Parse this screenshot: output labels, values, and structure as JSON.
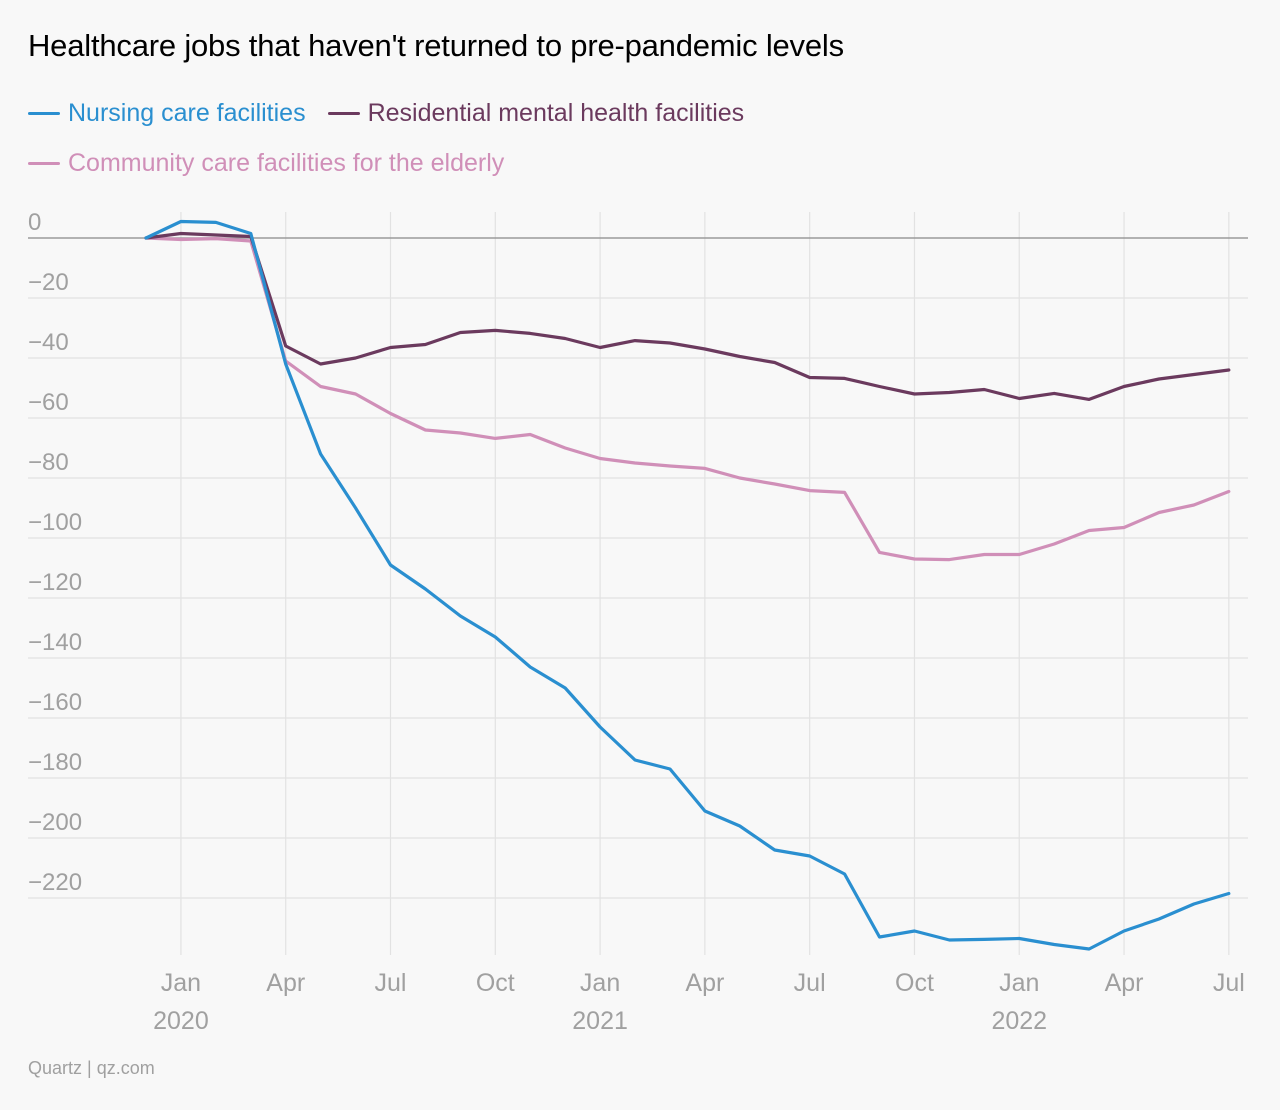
{
  "title": "Healthcare jobs that haven't returned to pre-pandemic levels",
  "footer": "Quartz | qz.com",
  "colors": {
    "nursing": "#2a8fd0",
    "residential": "#6b3a5e",
    "community": "#d08fb8",
    "grid": "#e2e2e2",
    "zero_line": "#9a9a9a",
    "axis_text": "#a0a0a0"
  },
  "chart_data": {
    "type": "line",
    "title": "Healthcare jobs that haven't returned to pre-pandemic levels",
    "xlabel": "",
    "ylabel": "",
    "ylim": [
      -237,
      0
    ],
    "y_ticks": [
      "0",
      "−20",
      "−40",
      "−60",
      "−80",
      "−100",
      "−120",
      "−140",
      "−160",
      "−180",
      "−200",
      "−220"
    ],
    "y_tick_values": [
      0,
      -20,
      -40,
      -60,
      -80,
      -100,
      -120,
      -140,
      -160,
      -180,
      -200,
      -220
    ],
    "x": [
      "2019-12",
      "2020-01",
      "2020-02",
      "2020-03",
      "2020-04",
      "2020-05",
      "2020-06",
      "2020-07",
      "2020-08",
      "2020-09",
      "2020-10",
      "2020-11",
      "2020-12",
      "2021-01",
      "2021-02",
      "2021-03",
      "2021-04",
      "2021-05",
      "2021-06",
      "2021-07",
      "2021-08",
      "2021-09",
      "2021-10",
      "2021-11",
      "2021-12",
      "2022-01",
      "2022-02",
      "2022-03",
      "2022-04",
      "2022-05",
      "2022-06",
      "2022-07"
    ],
    "x_ticks": [
      {
        "month": "2020-01",
        "label": "Jan",
        "year": "2020"
      },
      {
        "month": "2020-04",
        "label": "Apr",
        "year": ""
      },
      {
        "month": "2020-07",
        "label": "Jul",
        "year": ""
      },
      {
        "month": "2020-10",
        "label": "Oct",
        "year": ""
      },
      {
        "month": "2021-01",
        "label": "Jan",
        "year": "2021"
      },
      {
        "month": "2021-04",
        "label": "Apr",
        "year": ""
      },
      {
        "month": "2021-07",
        "label": "Jul",
        "year": ""
      },
      {
        "month": "2021-10",
        "label": "Oct",
        "year": ""
      },
      {
        "month": "2022-01",
        "label": "Jan",
        "year": "2022"
      },
      {
        "month": "2022-04",
        "label": "Apr",
        "year": ""
      },
      {
        "month": "2022-07",
        "label": "Jul",
        "year": ""
      }
    ],
    "series": [
      {
        "name": "Nursing care facilities",
        "color": "#2a8fd0",
        "values": [
          0,
          5.5,
          5.2,
          1.5,
          -42,
          -72,
          -90,
          -109,
          -117,
          -126,
          -133,
          -143,
          -150,
          -163,
          -174,
          -177,
          -191,
          -196,
          -204,
          -206,
          -212,
          -233,
          -231,
          -234,
          -233.8,
          -233.5,
          -235.5,
          -237,
          -231,
          -227,
          -222,
          -218.5
        ]
      },
      {
        "name": "Residential mental health facilities",
        "color": "#6b3a5e",
        "values": [
          0,
          1.5,
          1.0,
          0.5,
          -36,
          -42,
          -40,
          -36.5,
          -35.5,
          -31.5,
          -30.8,
          -31.8,
          -33.5,
          -36.5,
          -34.2,
          -35,
          -37,
          -39.5,
          -41.5,
          -46.5,
          -46.8,
          -49.5,
          -52,
          -51.5,
          -50.5,
          -53.5,
          -51.8,
          -53.8,
          -49.5,
          -47,
          -45.5,
          -44
        ]
      },
      {
        "name": "Community care facilities for the elderly",
        "color": "#d08fb8",
        "values": [
          0,
          -0.5,
          -0.2,
          -1,
          -41,
          -49.5,
          -52,
          -58.5,
          -64,
          -65,
          -66.8,
          -65.5,
          -70,
          -73.5,
          -75,
          -76,
          -76.8,
          -80,
          -82,
          -84.2,
          -84.8,
          -104.8,
          -107,
          -107.2,
          -105.5,
          -105.5,
          -102,
          -97.5,
          -96.5,
          -91.5,
          -89,
          -84.5
        ]
      }
    ]
  }
}
